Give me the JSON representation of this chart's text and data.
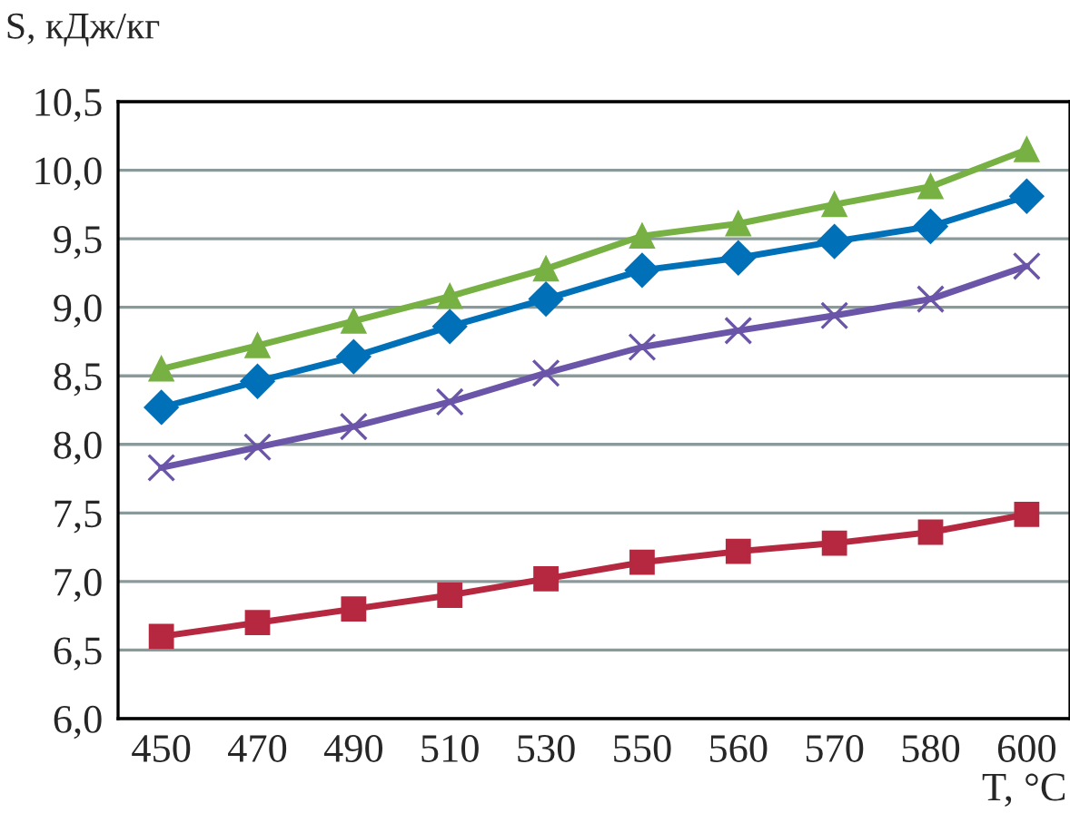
{
  "chart_data": {
    "type": "line",
    "ylabel": "S, кДж/кг",
    "xlabel": "T, °C",
    "categories": [
      "450",
      "470",
      "490",
      "510",
      "530",
      "550",
      "560",
      "570",
      "580",
      "600"
    ],
    "series": [
      {
        "color": "#77b043",
        "marker": "triangle",
        "values": [
          8.55,
          8.72,
          8.9,
          9.08,
          9.28,
          9.52,
          9.61,
          9.75,
          9.88,
          10.15
        ]
      },
      {
        "color": "#0070b8",
        "marker": "diamond",
        "values": [
          8.27,
          8.46,
          8.64,
          8.86,
          9.06,
          9.27,
          9.36,
          9.48,
          9.59,
          9.81
        ]
      },
      {
        "color": "#6a55a8",
        "marker": "cross",
        "values": [
          7.83,
          7.98,
          8.13,
          8.31,
          8.52,
          8.71,
          8.83,
          8.94,
          9.06,
          9.3
        ]
      },
      {
        "color": "#b5283f",
        "marker": "square",
        "values": [
          6.6,
          6.7,
          6.8,
          6.9,
          7.02,
          7.14,
          7.22,
          7.28,
          7.36,
          7.49
        ]
      }
    ],
    "ylim": [
      6.0,
      10.5
    ],
    "yticks": [
      {
        "value": 6.0,
        "label": "6,0"
      },
      {
        "value": 6.5,
        "label": "6,5"
      },
      {
        "value": 7.0,
        "label": "7,0"
      },
      {
        "value": 7.5,
        "label": "7,5"
      },
      {
        "value": 8.0,
        "label": "8,0"
      },
      {
        "value": 8.5,
        "label": "8,5"
      },
      {
        "value": 9.0,
        "label": "9,0"
      },
      {
        "value": 9.5,
        "label": "9,5"
      },
      {
        "value": 10.0,
        "label": "10,0"
      },
      {
        "value": 10.5,
        "label": "10,5"
      }
    ],
    "grid": "y",
    "line_style": "solid"
  }
}
